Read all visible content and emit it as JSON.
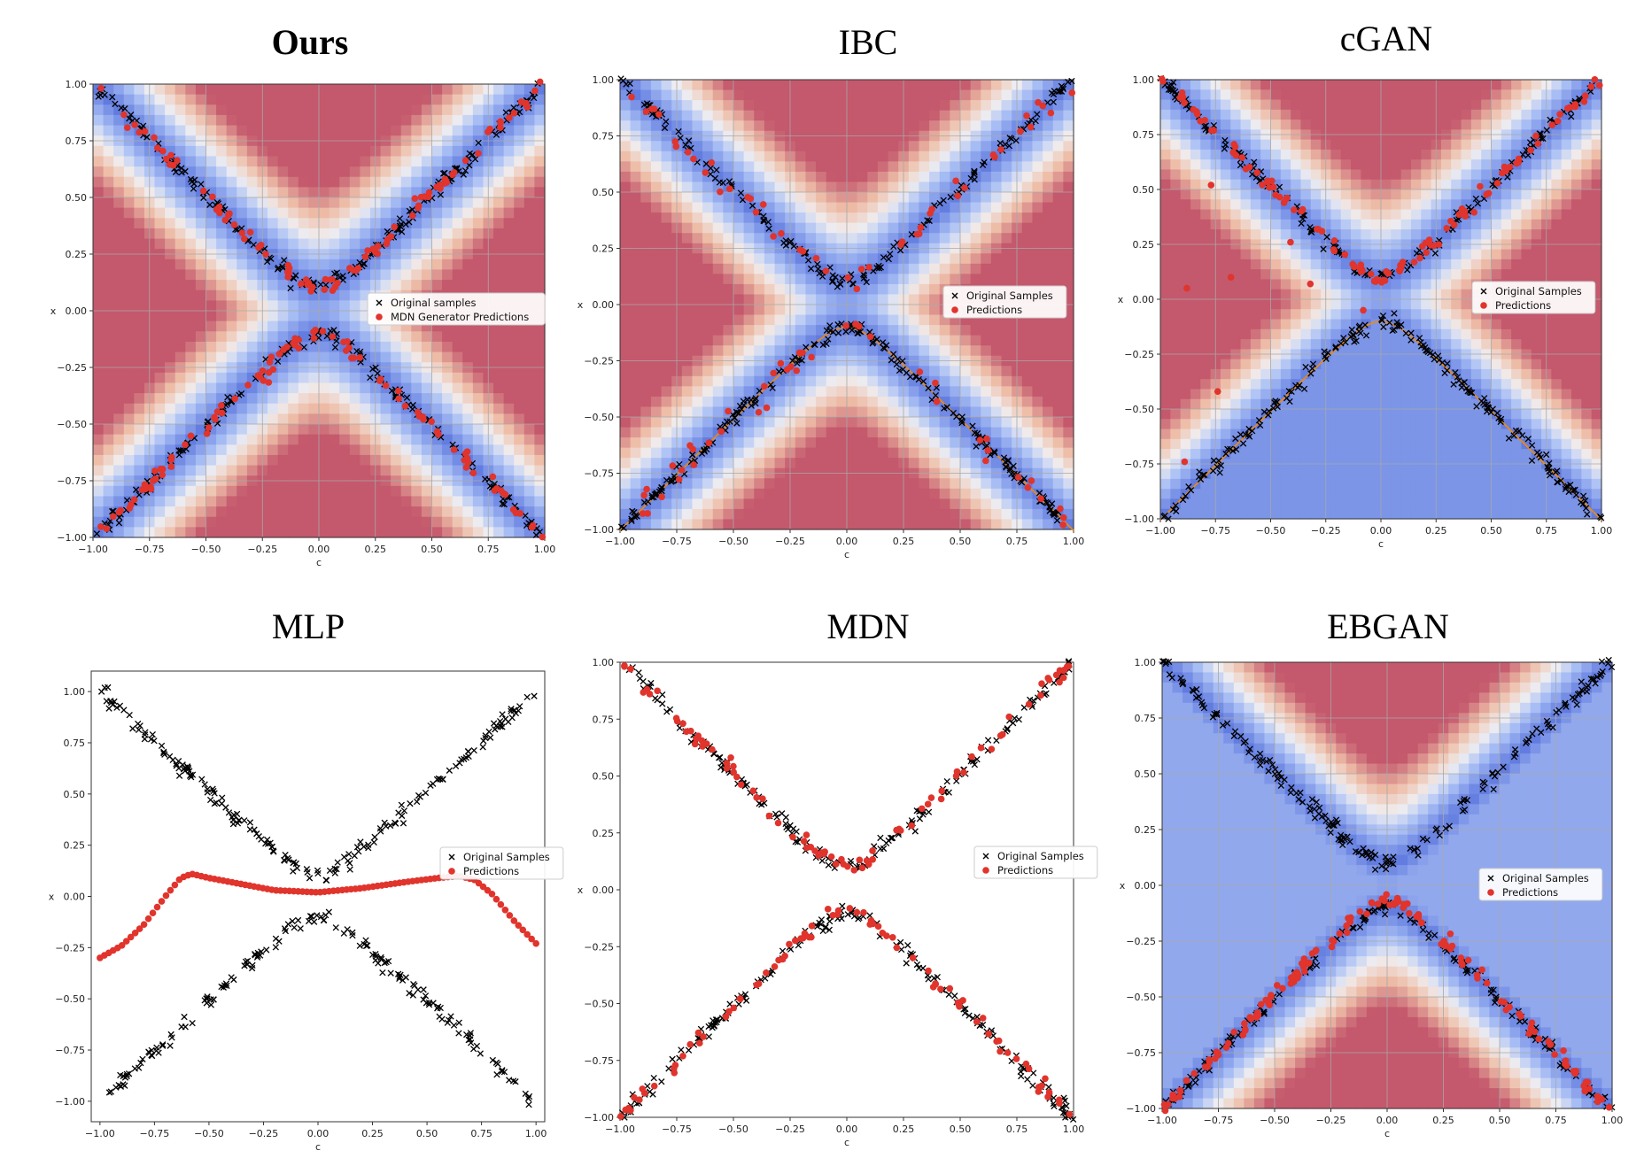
{
  "chart_data": [
    {
      "title": "Ours",
      "title_bold": true,
      "type": "scatter",
      "background": "energy",
      "xlabel": "c",
      "ylabel": "x",
      "xlim": [
        -1,
        1
      ],
      "ylim": [
        -1,
        1
      ],
      "xticks": [
        "-1.00",
        "-0.75",
        "-0.50",
        "-0.25",
        "0.00",
        "0.25",
        "0.50",
        "0.75",
        "1.00"
      ],
      "yticks": [
        "-1.00",
        "-0.75",
        "-0.50",
        "-0.25",
        "0.00",
        "0.25",
        "0.50",
        "0.75",
        "1.00"
      ],
      "legend": [
        "Original samples",
        "MDN Generator Predictions"
      ],
      "legend_position": "center-right",
      "series": [
        {
          "name": "Original samples",
          "marker": "x",
          "color": "#000000",
          "shape": "hyperbola_both_branches",
          "a": 0.1,
          "n": 340
        },
        {
          "name": "MDN Generator Predictions",
          "marker": "o",
          "color": "#e0342c",
          "shape": "hyperbola_both_branches",
          "a": 0.1,
          "n": 190
        }
      ]
    },
    {
      "title": "IBC",
      "title_bold": false,
      "type": "scatter",
      "background": "energy",
      "xlabel": "c",
      "ylabel": "x",
      "xlim": [
        -1,
        1
      ],
      "ylim": [
        -1,
        1
      ],
      "xticks": [
        "-1.00",
        "-0.75",
        "-0.50",
        "-0.25",
        "0.00",
        "0.25",
        "0.50",
        "0.75",
        "1.00"
      ],
      "yticks": [
        "-1.00",
        "-0.75",
        "-0.50",
        "-0.25",
        "0.00",
        "0.25",
        "0.50",
        "0.75",
        "1.00"
      ],
      "legend": [
        "Original Samples",
        "Predictions"
      ],
      "legend_position": "center-right",
      "series": [
        {
          "name": "Original Samples",
          "marker": "x",
          "color": "#000000",
          "shape": "hyperbola_both_branches",
          "a": 0.1,
          "n": 340
        },
        {
          "name": "Predictions",
          "marker": "o",
          "color": "#e0342c",
          "shape": "hyperbola_noisy",
          "a": 0.1,
          "n": 90
        }
      ]
    },
    {
      "title": "cGAN",
      "title_bold": false,
      "type": "scatter",
      "background": "energy",
      "xlabel": "c",
      "ylabel": "x",
      "xlim": [
        -1,
        1
      ],
      "ylim": [
        -1,
        1
      ],
      "xticks": [
        "-1.00",
        "-0.75",
        "-0.50",
        "-0.25",
        "0.00",
        "0.25",
        "0.50",
        "0.75",
        "1.00"
      ],
      "yticks": [
        "-1.00",
        "-0.75",
        "-0.50",
        "-0.25",
        "0.00",
        "0.25",
        "0.50",
        "0.75",
        "1.00"
      ],
      "legend": [
        "Original Samples",
        "Predictions"
      ],
      "legend_position": "center-right",
      "series": [
        {
          "name": "Original Samples",
          "marker": "x",
          "color": "#000000",
          "shape": "hyperbola_both_branches",
          "a": 0.1,
          "n": 340
        },
        {
          "name": "Predictions",
          "marker": "o",
          "color": "#e0342c",
          "shape": "hyperbola_upper_branch",
          "a": 0.1,
          "n": 110,
          "outliers": [
            [
              -0.77,
              0.52
            ],
            [
              -0.88,
              0.05
            ],
            [
              -0.68,
              0.1
            ],
            [
              -0.41,
              0.26
            ],
            [
              -0.32,
              0.07
            ],
            [
              -0.08,
              -0.05
            ],
            [
              -0.74,
              -0.42
            ],
            [
              -0.89,
              -0.74
            ]
          ]
        }
      ]
    },
    {
      "title": "MLP",
      "title_bold": false,
      "type": "scatter",
      "background": "none",
      "xlabel": "c",
      "ylabel": "x",
      "xlim": [
        -1.04,
        1.04
      ],
      "ylim": [
        -1.1,
        1.1
      ],
      "xticks": [
        "-1.00",
        "-0.75",
        "-0.50",
        "-0.25",
        "0.00",
        "0.25",
        "0.50",
        "0.75",
        "1.00"
      ],
      "yticks": [
        "-1.00",
        "-0.75",
        "-0.50",
        "-0.25",
        "0.00",
        "0.25",
        "0.50",
        "0.75",
        "1.00"
      ],
      "legend": [
        "Original Samples",
        "Predictions"
      ],
      "legend_position": "center-right",
      "series": [
        {
          "name": "Original Samples",
          "marker": "x",
          "color": "#000000",
          "shape": "hyperbola_both_branches",
          "a": 0.1,
          "n": 340
        },
        {
          "name": "Predictions",
          "marker": "o",
          "color": "#e0342c",
          "shape": "curve",
          "points": [
            [
              -1.0,
              -0.3
            ],
            [
              -0.9,
              -0.24
            ],
            [
              -0.8,
              -0.14
            ],
            [
              -0.7,
              0.0
            ],
            [
              -0.63,
              0.09
            ],
            [
              -0.58,
              0.11
            ],
            [
              -0.5,
              0.09
            ],
            [
              -0.35,
              0.06
            ],
            [
              -0.2,
              0.03
            ],
            [
              0.0,
              0.02
            ],
            [
              0.2,
              0.04
            ],
            [
              0.4,
              0.07
            ],
            [
              0.55,
              0.09
            ],
            [
              0.65,
              0.1
            ],
            [
              0.72,
              0.08
            ],
            [
              0.8,
              0.01
            ],
            [
              0.9,
              -0.12
            ],
            [
              1.0,
              -0.23
            ]
          ],
          "n": 100
        }
      ]
    },
    {
      "title": "MDN",
      "title_bold": false,
      "type": "scatter",
      "background": "none",
      "xlabel": "c",
      "ylabel": "x",
      "xlim": [
        -1,
        1
      ],
      "ylim": [
        -1,
        1
      ],
      "xticks": [
        "-1.00",
        "-0.75",
        "-0.50",
        "-0.25",
        "0.00",
        "0.25",
        "0.50",
        "0.75",
        "1.00"
      ],
      "yticks": [
        "-1.00",
        "-0.75",
        "-0.50",
        "-0.25",
        "0.00",
        "0.25",
        "0.50",
        "0.75",
        "1.00"
      ],
      "legend": [
        "Original Samples",
        "Predictions"
      ],
      "legend_position": "center-right",
      "series": [
        {
          "name": "Original Samples",
          "marker": "x",
          "color": "#000000",
          "shape": "hyperbola_both_branches",
          "a": 0.1,
          "n": 340
        },
        {
          "name": "Predictions",
          "marker": "o",
          "color": "#e0342c",
          "shape": "hyperbola_both_branches",
          "a": 0.1,
          "n": 170
        }
      ]
    },
    {
      "title": "EBGAN",
      "title_bold": false,
      "type": "scatter",
      "background": "energy",
      "xlabel": "c",
      "ylabel": "x",
      "xlim": [
        -1,
        1
      ],
      "ylim": [
        -1,
        1
      ],
      "xticks": [
        "-1.00",
        "-0.75",
        "-0.50",
        "-0.25",
        "0.00",
        "0.25",
        "0.50",
        "0.75",
        "1.00"
      ],
      "yticks": [
        "-1.00",
        "-0.75",
        "-0.50",
        "-0.25",
        "0.00",
        "0.25",
        "0.50",
        "0.75",
        "1.00"
      ],
      "legend": [
        "Original Samples",
        "Predictions"
      ],
      "legend_position": "center-right",
      "series": [
        {
          "name": "Original Samples",
          "marker": "x",
          "color": "#000000",
          "shape": "hyperbola_both_branches",
          "a": 0.1,
          "n": 340
        },
        {
          "name": "Predictions",
          "marker": "o",
          "color": "#e0342c",
          "shape": "hyperbola_lower_branch",
          "a": 0.05,
          "n": 140
        }
      ]
    }
  ]
}
